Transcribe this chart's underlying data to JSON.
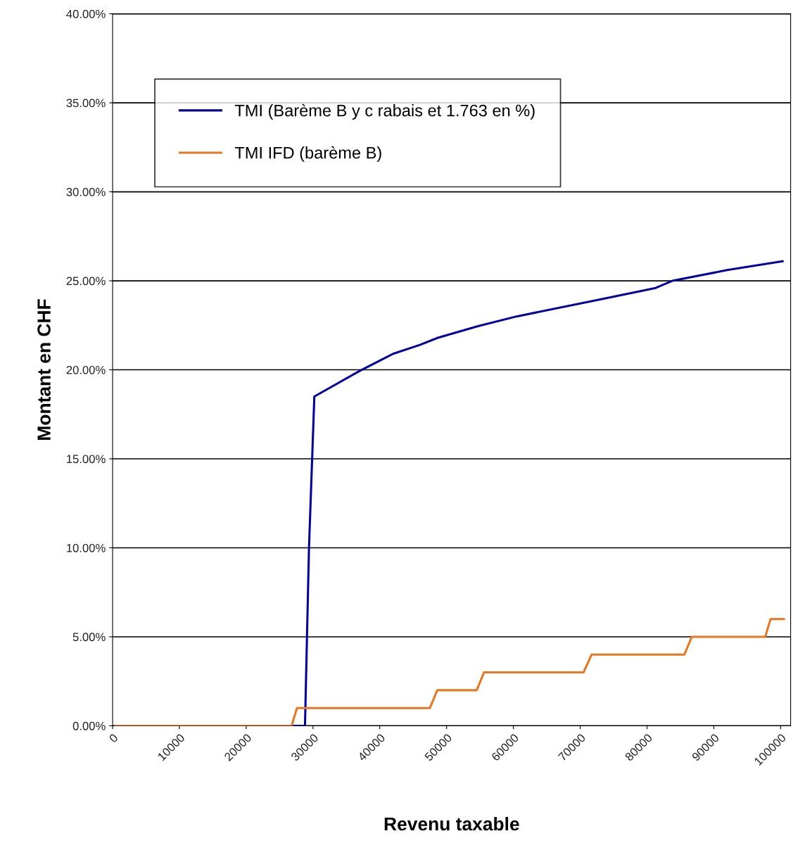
{
  "chart_data": {
    "type": "line",
    "xlabel": "Revenu taxable",
    "ylabel": "Montant en CHF",
    "xlim": [
      0,
      101500
    ],
    "xticks": [
      0,
      10000,
      20000,
      30000,
      40000,
      50000,
      60000,
      70000,
      80000,
      90000,
      100000
    ],
    "ylim": [
      0,
      40
    ],
    "yticks": [
      {
        "value": 0,
        "label": "0.00%"
      },
      {
        "value": 5,
        "label": "5.00%"
      },
      {
        "value": 10,
        "label": "10.00%"
      },
      {
        "value": 15,
        "label": "15.00%"
      },
      {
        "value": 20,
        "label": "20.00%"
      },
      {
        "value": 25,
        "label": "25.00%"
      },
      {
        "value": 30,
        "label": "30.00%"
      },
      {
        "value": 35,
        "label": "35.00%"
      },
      {
        "value": 40,
        "label": "40.00%"
      }
    ],
    "grid": "y",
    "legend": "top left",
    "marker": "none",
    "line_style": "solid",
    "series": [
      {
        "name": "TMI (Barème B y c rabais et 1.763 en %)",
        "color": "#0000a0",
        "x": [
          500,
          28800,
          29400,
          30200,
          37300,
          42000,
          46000,
          48700,
          54700,
          60500,
          73000,
          81300,
          83800,
          92000,
          100300
        ],
        "values": [
          0,
          0,
          10,
          18.5,
          20.0,
          20.9,
          21.4,
          21.8,
          22.45,
          23.0,
          23.95,
          24.6,
          25.0,
          25.6,
          26.1
        ]
      },
      {
        "name": "TMI IFD (barème B)",
        "color": "#e87722",
        "x": [
          500,
          26800,
          27600,
          47500,
          48600,
          54500,
          55600,
          70500,
          71700,
          85600,
          86700,
          97700,
          98500,
          100500
        ],
        "values": [
          0,
          0,
          1,
          1,
          2,
          2,
          3,
          3,
          4,
          4,
          5,
          5,
          6,
          6
        ]
      }
    ]
  }
}
